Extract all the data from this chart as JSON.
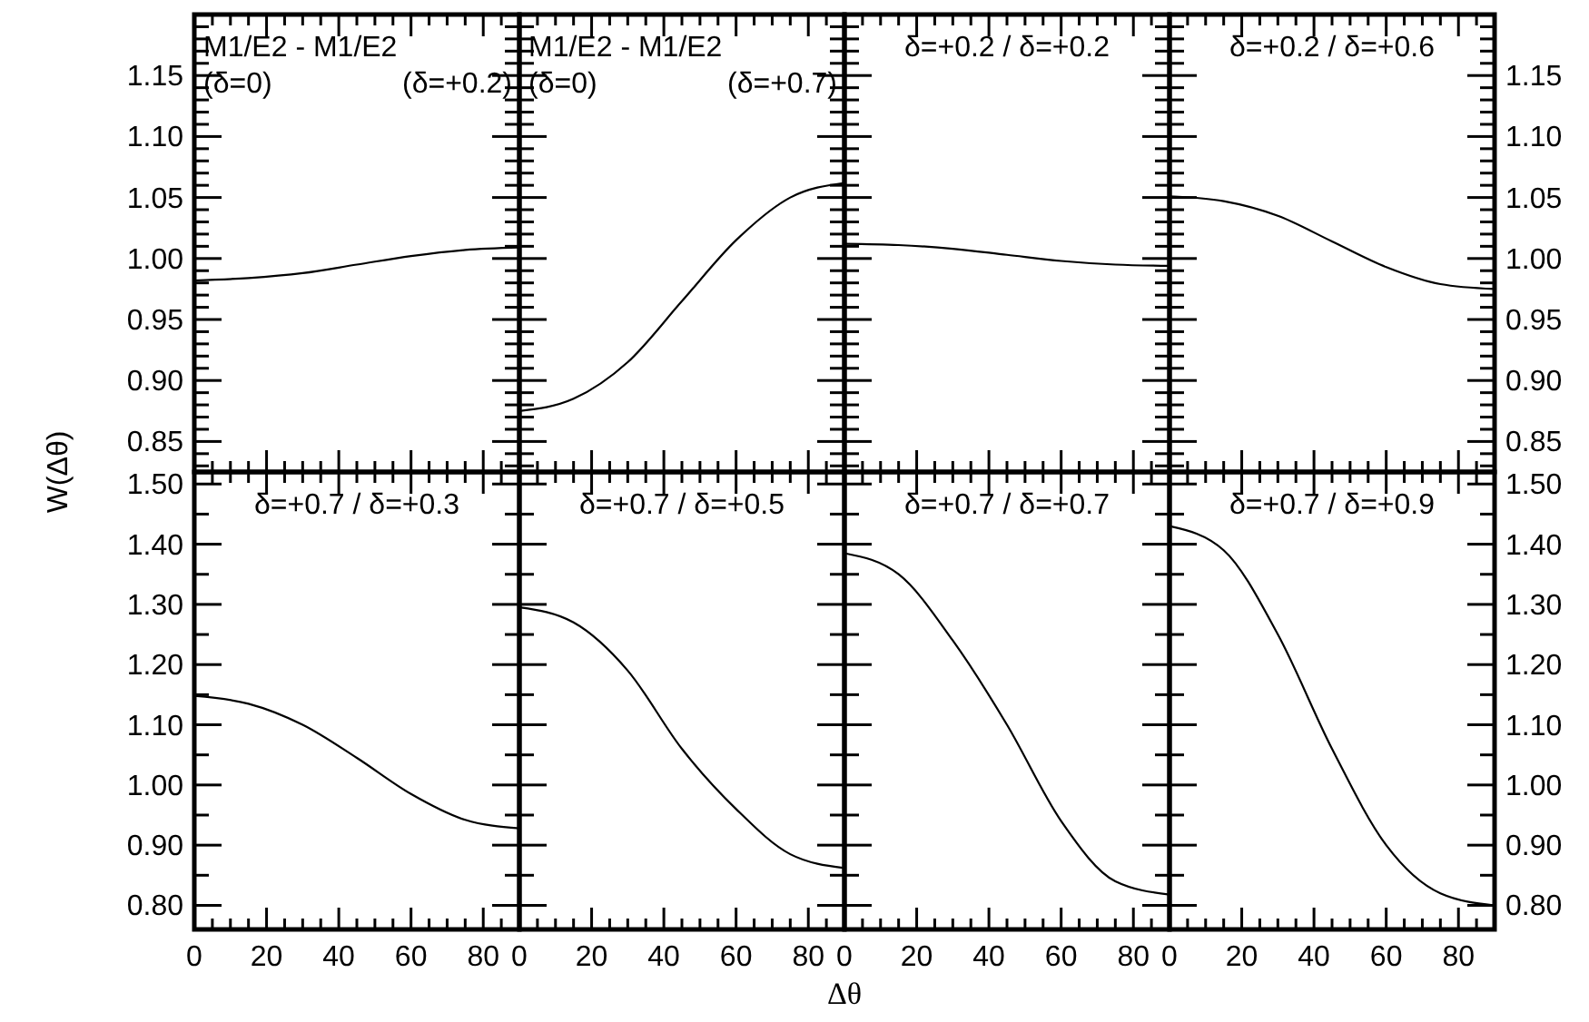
{
  "chart_data": [
    {
      "type": "line",
      "title": "M1/E2 - M1/E2",
      "annotations": [
        "(δ=0)",
        "(δ=+0.2)"
      ],
      "ylabel": "W(Δθ)",
      "x": [
        0,
        15,
        30,
        45,
        60,
        75,
        90
      ],
      "values": [
        0.982,
        0.984,
        0.988,
        0.995,
        1.002,
        1.007,
        1.009
      ],
      "color": "#000000",
      "xlim": [
        0,
        90
      ],
      "ylim": [
        0.825,
        1.2
      ],
      "xticks": [
        {
          "value": 0,
          "label": null
        },
        {
          "value": 5,
          "label": null
        },
        {
          "value": 10,
          "label": null
        },
        {
          "value": 15,
          "label": null
        },
        {
          "value": 20,
          "label": null
        },
        {
          "value": 25,
          "label": null
        },
        {
          "value": 30,
          "label": null
        },
        {
          "value": 35,
          "label": null
        },
        {
          "value": 40,
          "label": null
        },
        {
          "value": 45,
          "label": null
        },
        {
          "value": 50,
          "label": null
        },
        {
          "value": 55,
          "label": null
        },
        {
          "value": 60,
          "label": null
        },
        {
          "value": 65,
          "label": null
        },
        {
          "value": 70,
          "label": null
        },
        {
          "value": 75,
          "label": null
        },
        {
          "value": 80,
          "label": null
        },
        {
          "value": 85,
          "label": null
        }
      ],
      "yticks": [
        {
          "value": 0.83,
          "label": null
        },
        {
          "value": 0.84,
          "label": null
        },
        0.85,
        {
          "value": 0.86,
          "label": null
        },
        {
          "value": 0.87,
          "label": null
        },
        {
          "value": 0.88,
          "label": null
        },
        {
          "value": 0.89,
          "label": null
        },
        {
          "value": 0.9,
          "label": "0.90"
        },
        {
          "value": 0.91,
          "label": null
        },
        {
          "value": 0.92,
          "label": null
        },
        {
          "value": 0.93,
          "label": null
        },
        {
          "value": 0.94,
          "label": null
        },
        0.95,
        {
          "value": 0.96,
          "label": null
        },
        {
          "value": 0.97,
          "label": null
        },
        {
          "value": 0.98,
          "label": null
        },
        {
          "value": 0.99,
          "label": null
        },
        {
          "value": 1,
          "label": "1.00"
        },
        {
          "value": 1.01,
          "label": null
        },
        {
          "value": 1.02,
          "label": null
        },
        {
          "value": 1.03,
          "label": null
        },
        {
          "value": 1.04,
          "label": null
        },
        1.05,
        {
          "value": 1.06,
          "label": null
        },
        {
          "value": 1.07,
          "label": null
        },
        {
          "value": 1.08,
          "label": null
        },
        {
          "value": 1.09,
          "label": null
        },
        {
          "value": 1.1,
          "label": "1.10"
        },
        {
          "value": 1.11,
          "label": null
        },
        {
          "value": 1.12,
          "label": null
        },
        {
          "value": 1.13,
          "label": null
        },
        {
          "value": 1.14,
          "label": null
        },
        1.15,
        {
          "value": 1.16,
          "label": null
        },
        {
          "value": 1.17,
          "label": null
        },
        {
          "value": 1.18,
          "label": null
        },
        {
          "value": 1.19,
          "label": null
        }
      ],
      "tick_labels": "y"
    },
    {
      "type": "line",
      "title": "M1/E2 - M1/E2",
      "annotations": [
        "(δ=0)",
        "(δ=+0.7)"
      ],
      "x": [
        0,
        15,
        30,
        45,
        60,
        75,
        90
      ],
      "values": [
        0.875,
        0.885,
        0.915,
        0.965,
        1.015,
        1.05,
        1.062
      ],
      "color": "#000000",
      "xlim": [
        0,
        90
      ],
      "ylim": [
        0.825,
        1.2
      ],
      "xticks": [
        {
          "value": 0,
          "label": null
        },
        {
          "value": 5,
          "label": null
        },
        {
          "value": 10,
          "label": null
        },
        {
          "value": 15,
          "label": null
        },
        {
          "value": 20,
          "label": null
        },
        {
          "value": 25,
          "label": null
        },
        {
          "value": 30,
          "label": null
        },
        {
          "value": 35,
          "label": null
        },
        {
          "value": 40,
          "label": null
        },
        {
          "value": 45,
          "label": null
        },
        {
          "value": 50,
          "label": null
        },
        {
          "value": 55,
          "label": null
        },
        {
          "value": 60,
          "label": null
        },
        {
          "value": 65,
          "label": null
        },
        {
          "value": 70,
          "label": null
        },
        {
          "value": 75,
          "label": null
        },
        {
          "value": 80,
          "label": null
        },
        {
          "value": 85,
          "label": null
        }
      ],
      "yticks": [
        {
          "value": 0.83,
          "label": null
        },
        {
          "value": 0.84,
          "label": null
        },
        {
          "value": 0.85,
          "label": null
        },
        {
          "value": 0.86,
          "label": null
        },
        {
          "value": 0.87,
          "label": null
        },
        {
          "value": 0.88,
          "label": null
        },
        {
          "value": 0.89,
          "label": null
        },
        {
          "value": 0.9,
          "label": null
        },
        {
          "value": 0.91,
          "label": null
        },
        {
          "value": 0.92,
          "label": null
        },
        {
          "value": 0.93,
          "label": null
        },
        {
          "value": 0.94,
          "label": null
        },
        {
          "value": 0.95,
          "label": null
        },
        {
          "value": 0.96,
          "label": null
        },
        {
          "value": 0.97,
          "label": null
        },
        {
          "value": 0.98,
          "label": null
        },
        {
          "value": 0.99,
          "label": null
        },
        {
          "value": 1,
          "label": null
        },
        {
          "value": 1.01,
          "label": null
        },
        {
          "value": 1.02,
          "label": null
        },
        {
          "value": 1.03,
          "label": null
        },
        {
          "value": 1.04,
          "label": null
        },
        {
          "value": 1.05,
          "label": null
        },
        {
          "value": 1.06,
          "label": null
        },
        {
          "value": 1.07,
          "label": null
        },
        {
          "value": 1.08,
          "label": null
        },
        {
          "value": 1.09,
          "label": null
        },
        {
          "value": 1.1,
          "label": null
        },
        {
          "value": 1.11,
          "label": null
        },
        {
          "value": 1.12,
          "label": null
        },
        {
          "value": 1.13,
          "label": null
        },
        {
          "value": 1.14,
          "label": null
        },
        {
          "value": 1.15,
          "label": null
        },
        {
          "value": 1.16,
          "label": null
        },
        {
          "value": 1.17,
          "label": null
        },
        {
          "value": 1.18,
          "label": null
        },
        {
          "value": 1.19,
          "label": null
        }
      ],
      "tick_labels": false
    },
    {
      "type": "line",
      "title": "δ=+0.2 / δ=+0.2",
      "x": [
        0,
        15,
        30,
        45,
        60,
        75,
        90
      ],
      "values": [
        1.012,
        1.011,
        1.008,
        1.003,
        0.998,
        0.995,
        0.994
      ],
      "color": "#000000",
      "xlim": [
        0,
        90
      ],
      "ylim": [
        0.825,
        1.2
      ],
      "xticks": [
        {
          "value": 0,
          "label": null
        },
        {
          "value": 5,
          "label": null
        },
        {
          "value": 10,
          "label": null
        },
        {
          "value": 15,
          "label": null
        },
        {
          "value": 20,
          "label": null
        },
        {
          "value": 25,
          "label": null
        },
        {
          "value": 30,
          "label": null
        },
        {
          "value": 35,
          "label": null
        },
        {
          "value": 40,
          "label": null
        },
        {
          "value": 45,
          "label": null
        },
        {
          "value": 50,
          "label": null
        },
        {
          "value": 55,
          "label": null
        },
        {
          "value": 60,
          "label": null
        },
        {
          "value": 65,
          "label": null
        },
        {
          "value": 70,
          "label": null
        },
        {
          "value": 75,
          "label": null
        },
        {
          "value": 80,
          "label": null
        },
        {
          "value": 85,
          "label": null
        }
      ],
      "yticks": [
        {
          "value": 0.83,
          "label": null
        },
        {
          "value": 0.84,
          "label": null
        },
        {
          "value": 0.85,
          "label": null
        },
        {
          "value": 0.86,
          "label": null
        },
        {
          "value": 0.87,
          "label": null
        },
        {
          "value": 0.88,
          "label": null
        },
        {
          "value": 0.89,
          "label": null
        },
        {
          "value": 0.9,
          "label": null
        },
        {
          "value": 0.91,
          "label": null
        },
        {
          "value": 0.92,
          "label": null
        },
        {
          "value": 0.93,
          "label": null
        },
        {
          "value": 0.94,
          "label": null
        },
        {
          "value": 0.95,
          "label": null
        },
        {
          "value": 0.96,
          "label": null
        },
        {
          "value": 0.97,
          "label": null
        },
        {
          "value": 0.98,
          "label": null
        },
        {
          "value": 0.99,
          "label": null
        },
        {
          "value": 1,
          "label": null
        },
        {
          "value": 1.01,
          "label": null
        },
        {
          "value": 1.02,
          "label": null
        },
        {
          "value": 1.03,
          "label": null
        },
        {
          "value": 1.04,
          "label": null
        },
        {
          "value": 1.05,
          "label": null
        },
        {
          "value": 1.06,
          "label": null
        },
        {
          "value": 1.07,
          "label": null
        },
        {
          "value": 1.08,
          "label": null
        },
        {
          "value": 1.09,
          "label": null
        },
        {
          "value": 1.1,
          "label": null
        },
        {
          "value": 1.11,
          "label": null
        },
        {
          "value": 1.12,
          "label": null
        },
        {
          "value": 1.13,
          "label": null
        },
        {
          "value": 1.14,
          "label": null
        },
        {
          "value": 1.15,
          "label": null
        },
        {
          "value": 1.16,
          "label": null
        },
        {
          "value": 1.17,
          "label": null
        },
        {
          "value": 1.18,
          "label": null
        },
        {
          "value": 1.19,
          "label": null
        }
      ],
      "tick_labels": false
    },
    {
      "type": "line",
      "title": "δ=+0.2 / δ=+0.6",
      "x": [
        0,
        15,
        30,
        45,
        60,
        75,
        90
      ],
      "values": [
        1.051,
        1.047,
        1.035,
        1.014,
        0.993,
        0.979,
        0.975
      ],
      "color": "#000000",
      "xlim": [
        0,
        90
      ],
      "ylim": [
        0.825,
        1.2
      ],
      "xticks": [
        {
          "value": 0,
          "label": null
        },
        {
          "value": 5,
          "label": null
        },
        {
          "value": 10,
          "label": null
        },
        {
          "value": 15,
          "label": null
        },
        {
          "value": 20,
          "label": null
        },
        {
          "value": 25,
          "label": null
        },
        {
          "value": 30,
          "label": null
        },
        {
          "value": 35,
          "label": null
        },
        {
          "value": 40,
          "label": null
        },
        {
          "value": 45,
          "label": null
        },
        {
          "value": 50,
          "label": null
        },
        {
          "value": 55,
          "label": null
        },
        {
          "value": 60,
          "label": null
        },
        {
          "value": 65,
          "label": null
        },
        {
          "value": 70,
          "label": null
        },
        {
          "value": 75,
          "label": null
        },
        {
          "value": 80,
          "label": null
        },
        {
          "value": 85,
          "label": null
        }
      ],
      "yticks": [
        {
          "value": 0.83,
          "label": null
        },
        {
          "value": 0.84,
          "label": null
        },
        0.85,
        {
          "value": 0.86,
          "label": null
        },
        {
          "value": 0.87,
          "label": null
        },
        {
          "value": 0.88,
          "label": null
        },
        {
          "value": 0.89,
          "label": null
        },
        {
          "value": 0.9,
          "label": "0.90"
        },
        {
          "value": 0.91,
          "label": null
        },
        {
          "value": 0.92,
          "label": null
        },
        {
          "value": 0.93,
          "label": null
        },
        {
          "value": 0.94,
          "label": null
        },
        0.95,
        {
          "value": 0.96,
          "label": null
        },
        {
          "value": 0.97,
          "label": null
        },
        {
          "value": 0.98,
          "label": null
        },
        {
          "value": 0.99,
          "label": null
        },
        {
          "value": 1,
          "label": "1.00"
        },
        {
          "value": 1.01,
          "label": null
        },
        {
          "value": 1.02,
          "label": null
        },
        {
          "value": 1.03,
          "label": null
        },
        {
          "value": 1.04,
          "label": null
        },
        1.05,
        {
          "value": 1.06,
          "label": null
        },
        {
          "value": 1.07,
          "label": null
        },
        {
          "value": 1.08,
          "label": null
        },
        {
          "value": 1.09,
          "label": null
        },
        {
          "value": 1.1,
          "label": "1.10"
        },
        {
          "value": 1.11,
          "label": null
        },
        {
          "value": 1.12,
          "label": null
        },
        {
          "value": 1.13,
          "label": null
        },
        {
          "value": 1.14,
          "label": null
        },
        1.15,
        {
          "value": 1.16,
          "label": null
        },
        {
          "value": 1.17,
          "label": null
        },
        {
          "value": 1.18,
          "label": null
        },
        {
          "value": 1.19,
          "label": null
        }
      ],
      "tick_labels": "y"
    },
    {
      "type": "line",
      "title": "δ=+0.7 / δ=+0.3",
      "x": [
        0,
        15,
        30,
        45,
        60,
        75,
        90
      ],
      "values": [
        1.148,
        1.135,
        1.1,
        1.045,
        0.985,
        0.942,
        0.928
      ],
      "color": "#000000",
      "xlim": [
        0,
        90
      ],
      "ylim": [
        0.76,
        1.52
      ],
      "xticks": [
        0,
        {
          "value": 5,
          "label": null
        },
        {
          "value": 10,
          "label": null
        },
        {
          "value": 15,
          "label": null
        },
        20,
        {
          "value": 25,
          "label": null
        },
        {
          "value": 30,
          "label": null
        },
        {
          "value": 35,
          "label": null
        },
        40,
        {
          "value": 45,
          "label": null
        },
        {
          "value": 50,
          "label": null
        },
        {
          "value": 55,
          "label": null
        },
        60,
        {
          "value": 65,
          "label": null
        },
        {
          "value": 70,
          "label": null
        },
        {
          "value": 75,
          "label": null
        },
        80,
        {
          "value": 85,
          "label": null
        }
      ],
      "yticks": [
        {
          "value": 0.8,
          "label": "0.80"
        },
        {
          "value": 0.85,
          "label": null
        },
        {
          "value": 0.9,
          "label": "0.90"
        },
        {
          "value": 0.95,
          "label": null
        },
        {
          "value": 1,
          "label": "1.00"
        },
        {
          "value": 1.05,
          "label": null
        },
        {
          "value": 1.1,
          "label": "1.10"
        },
        {
          "value": 1.15,
          "label": null
        },
        {
          "value": 1.2,
          "label": "1.20"
        },
        {
          "value": 1.25,
          "label": null
        },
        {
          "value": 1.3,
          "label": "1.30"
        },
        {
          "value": 1.35,
          "label": null
        },
        {
          "value": 1.4,
          "label": "1.40"
        },
        {
          "value": 1.45,
          "label": null
        },
        {
          "value": 1.5,
          "label": "1.50"
        }
      ]
    },
    {
      "type": "line",
      "title": "δ=+0.7 / δ=+0.5",
      "xlabel": "Δθ",
      "x": [
        0,
        15,
        30,
        45,
        60,
        75,
        90
      ],
      "values": [
        1.295,
        1.27,
        1.19,
        1.06,
        0.96,
        0.885,
        0.862
      ],
      "color": "#000000",
      "xlim": [
        0,
        90
      ],
      "ylim": [
        0.76,
        1.52
      ],
      "xticks": [
        0,
        {
          "value": 5,
          "label": null
        },
        {
          "value": 10,
          "label": null
        },
        {
          "value": 15,
          "label": null
        },
        20,
        {
          "value": 25,
          "label": null
        },
        {
          "value": 30,
          "label": null
        },
        {
          "value": 35,
          "label": null
        },
        40,
        {
          "value": 45,
          "label": null
        },
        {
          "value": 50,
          "label": null
        },
        {
          "value": 55,
          "label": null
        },
        60,
        {
          "value": 65,
          "label": null
        },
        {
          "value": 70,
          "label": null
        },
        {
          "value": 75,
          "label": null
        },
        80,
        {
          "value": 85,
          "label": null
        }
      ],
      "yticks": [
        {
          "value": 0.8,
          "label": null
        },
        {
          "value": 0.85,
          "label": null
        },
        {
          "value": 0.9,
          "label": null
        },
        {
          "value": 0.95,
          "label": null
        },
        {
          "value": 1,
          "label": null
        },
        {
          "value": 1.05,
          "label": null
        },
        {
          "value": 1.1,
          "label": null
        },
        {
          "value": 1.15,
          "label": null
        },
        {
          "value": 1.2,
          "label": null
        },
        {
          "value": 1.25,
          "label": null
        },
        {
          "value": 1.3,
          "label": null
        },
        {
          "value": 1.35,
          "label": null
        },
        {
          "value": 1.4,
          "label": null
        },
        {
          "value": 1.45,
          "label": null
        },
        {
          "value": 1.5,
          "label": null
        }
      ],
      "tick_labels": "x"
    },
    {
      "type": "line",
      "title": "δ=+0.7 / δ=+0.7",
      "x": [
        0,
        15,
        30,
        45,
        60,
        75,
        90
      ],
      "values": [
        1.385,
        1.35,
        1.24,
        1.1,
        0.94,
        0.84,
        0.818
      ],
      "color": "#000000",
      "xlim": [
        0,
        90
      ],
      "ylim": [
        0.76,
        1.52
      ],
      "xticks": [
        0,
        {
          "value": 5,
          "label": null
        },
        {
          "value": 10,
          "label": null
        },
        {
          "value": 15,
          "label": null
        },
        20,
        {
          "value": 25,
          "label": null
        },
        {
          "value": 30,
          "label": null
        },
        {
          "value": 35,
          "label": null
        },
        40,
        {
          "value": 45,
          "label": null
        },
        {
          "value": 50,
          "label": null
        },
        {
          "value": 55,
          "label": null
        },
        60,
        {
          "value": 65,
          "label": null
        },
        {
          "value": 70,
          "label": null
        },
        {
          "value": 75,
          "label": null
        },
        80,
        {
          "value": 85,
          "label": null
        }
      ],
      "yticks": [
        {
          "value": 0.8,
          "label": null
        },
        {
          "value": 0.85,
          "label": null
        },
        {
          "value": 0.9,
          "label": null
        },
        {
          "value": 0.95,
          "label": null
        },
        {
          "value": 1,
          "label": null
        },
        {
          "value": 1.05,
          "label": null
        },
        {
          "value": 1.1,
          "label": null
        },
        {
          "value": 1.15,
          "label": null
        },
        {
          "value": 1.2,
          "label": null
        },
        {
          "value": 1.25,
          "label": null
        },
        {
          "value": 1.3,
          "label": null
        },
        {
          "value": 1.35,
          "label": null
        },
        {
          "value": 1.4,
          "label": null
        },
        {
          "value": 1.45,
          "label": null
        },
        {
          "value": 1.5,
          "label": null
        }
      ],
      "tick_labels": "x"
    },
    {
      "type": "line",
      "title": "δ=+0.7 / δ=+0.9",
      "x": [
        0,
        15,
        30,
        45,
        60,
        75,
        90
      ],
      "values": [
        1.43,
        1.39,
        1.25,
        1.06,
        0.9,
        0.82,
        0.8
      ],
      "color": "#000000",
      "xlim": [
        0,
        90
      ],
      "ylim": [
        0.76,
        1.52
      ],
      "xticks": [
        0,
        {
          "value": 5,
          "label": null
        },
        {
          "value": 10,
          "label": null
        },
        {
          "value": 15,
          "label": null
        },
        20,
        {
          "value": 25,
          "label": null
        },
        {
          "value": 30,
          "label": null
        },
        {
          "value": 35,
          "label": null
        },
        40,
        {
          "value": 45,
          "label": null
        },
        {
          "value": 50,
          "label": null
        },
        {
          "value": 55,
          "label": null
        },
        60,
        {
          "value": 65,
          "label": null
        },
        {
          "value": 70,
          "label": null
        },
        {
          "value": 75,
          "label": null
        },
        80,
        {
          "value": 85,
          "label": null
        }
      ],
      "yticks": [
        {
          "value": 0.8,
          "label": "0.80"
        },
        {
          "value": 0.85,
          "label": null
        },
        {
          "value": 0.9,
          "label": "0.90"
        },
        {
          "value": 0.95,
          "label": null
        },
        {
          "value": 1,
          "label": "1.00"
        },
        {
          "value": 1.05,
          "label": null
        },
        {
          "value": 1.1,
          "label": "1.10"
        },
        {
          "value": 1.15,
          "label": null
        },
        {
          "value": 1.2,
          "label": "1.20"
        },
        {
          "value": 1.25,
          "label": null
        },
        {
          "value": 1.3,
          "label": "1.30"
        },
        {
          "value": 1.35,
          "label": null
        },
        {
          "value": 1.4,
          "label": "1.40"
        },
        {
          "value": 1.45,
          "label": null
        },
        {
          "value": 1.5,
          "label": "1.50"
        }
      ]
    }
  ]
}
